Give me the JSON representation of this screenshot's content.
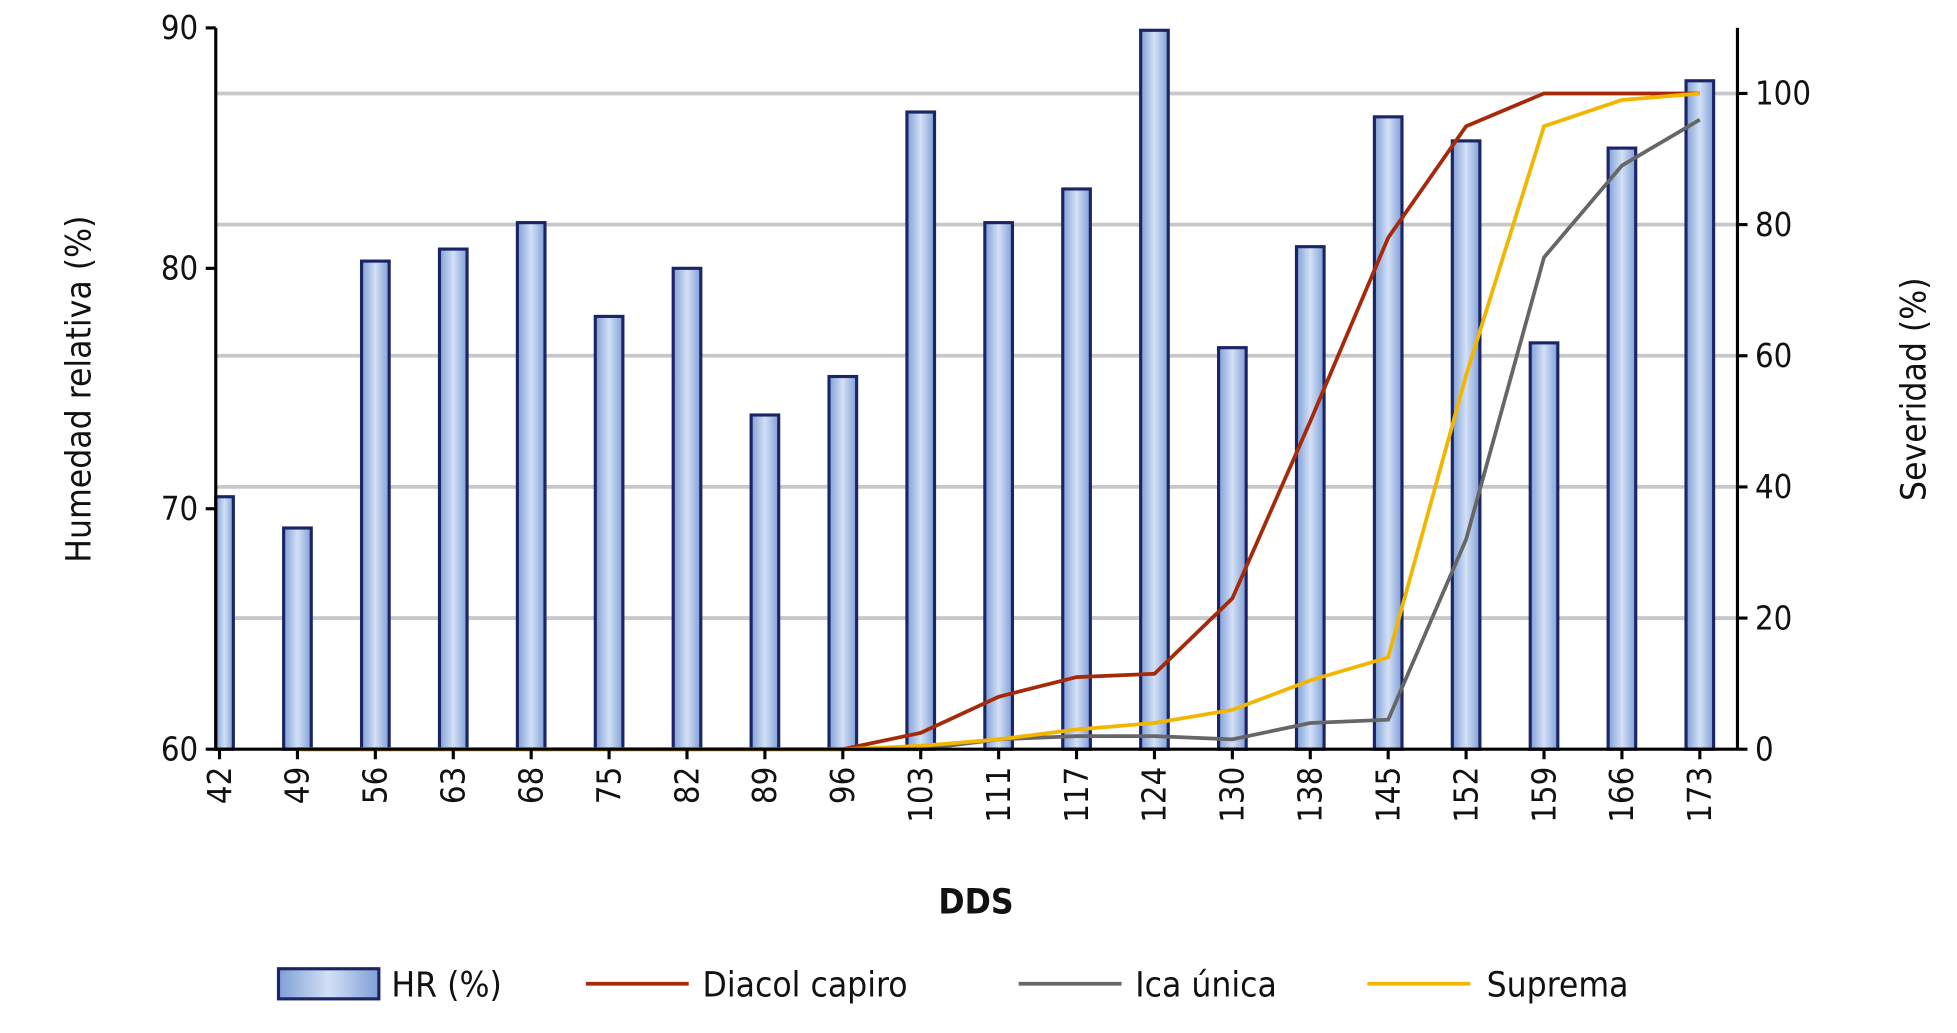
{
  "chart_data": {
    "type": "bar+line",
    "xlabel": "DDS",
    "ylabel_left": "Humedad relativa (%)",
    "ylabel_right": "Severidad (%)",
    "categories": [
      "42",
      "49",
      "56",
      "63",
      "68",
      "75",
      "82",
      "89",
      "96",
      "103",
      "111",
      "117",
      "124",
      "130",
      "138",
      "145",
      "152",
      "159",
      "166",
      "173"
    ],
    "ylim_left": [
      60,
      90
    ],
    "yticks_left": [
      60,
      70,
      80,
      90
    ],
    "ylim_right": [
      0,
      110
    ],
    "yticks_right": [
      0,
      20,
      40,
      60,
      80,
      100
    ],
    "grid": "horizontal on right-axis ticks",
    "legend_position": "bottom",
    "series": [
      {
        "name": "HR (%)",
        "kind": "bar",
        "axis": "left",
        "color": "#a9c0e8",
        "values": [
          70.5,
          69.2,
          80.3,
          80.8,
          81.9,
          78.0,
          80.0,
          73.9,
          75.5,
          86.5,
          81.9,
          83.3,
          89.9,
          76.7,
          80.9,
          86.3,
          85.3,
          76.9,
          85.0,
          87.8
        ]
      },
      {
        "name": "Diacol capiro",
        "kind": "line",
        "axis": "right",
        "color": "#a52a0a",
        "values": [
          null,
          0,
          0,
          0,
          0,
          0,
          0,
          0,
          0,
          2.5,
          8,
          11,
          11.5,
          23,
          50,
          78,
          95,
          100,
          100,
          100
        ]
      },
      {
        "name": "Ica única",
        "kind": "line",
        "axis": "right",
        "color": "#666666",
        "values": [
          null,
          0,
          0,
          0,
          0,
          0,
          0,
          0,
          0,
          0,
          1.5,
          2,
          2,
          1.5,
          4,
          4.5,
          32,
          75,
          89,
          96
        ]
      },
      {
        "name": "Suprema",
        "kind": "line",
        "axis": "right",
        "color": "#f2b600",
        "values": [
          null,
          0,
          0,
          0,
          0,
          0,
          0,
          0,
          0,
          0.5,
          1.5,
          3,
          4,
          6,
          10.5,
          14,
          57,
          95,
          99,
          100
        ]
      }
    ]
  }
}
